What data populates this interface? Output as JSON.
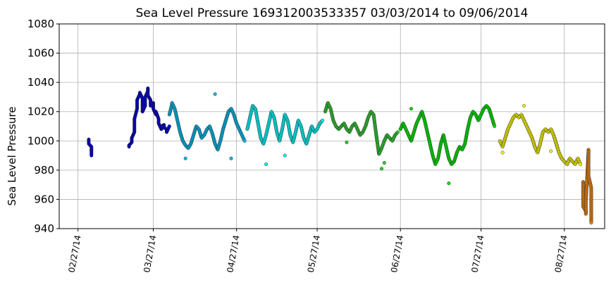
{
  "chart_data": {
    "type": "scatter",
    "title": "Sea Level Pressure 169312003533357  03/03/2014 to 09/06/2014",
    "ylabel": "Sea Level Pressure",
    "xlabel": "",
    "xlim": [
      "2014-02-20",
      "2014-09-11"
    ],
    "ylim": [
      940,
      1080
    ],
    "y_ticks": [
      940,
      960,
      980,
      1000,
      1020,
      1040,
      1060,
      1080
    ],
    "x_ticks": [
      {
        "date": "2014-02-27",
        "label": "02/27/14"
      },
      {
        "date": "2014-03-27",
        "label": "03/27/14"
      },
      {
        "date": "2014-04-27",
        "label": "04/27/14"
      },
      {
        "date": "2014-05-27",
        "label": "05/27/14"
      },
      {
        "date": "2014-06-27",
        "label": "06/27/14"
      },
      {
        "date": "2014-07-27",
        "label": "07/27/14"
      },
      {
        "date": "2014-08-27",
        "label": "08/27/14"
      }
    ],
    "grid": true,
    "color_gradient": [
      "#0000cc",
      "#00b4e6",
      "#00f0f0",
      "#30c030",
      "#00e000",
      "#f0f000",
      "#e88010"
    ],
    "series": [
      {
        "color": "#0000cc",
        "x": [
          "2014-03-03",
          "2014-03-03",
          "2014-03-04",
          "2014-03-04",
          "2014-03-04",
          "2014-03-04"
        ],
        "y": [
          1001,
          998,
          996,
          994,
          993,
          990
        ]
      },
      {
        "color": "#0000cc",
        "x": [
          "2014-03-18",
          "2014-03-18",
          "2014-03-19",
          "2014-03-19",
          "2014-03-20",
          "2014-03-20",
          "2014-03-20",
          "2014-03-21",
          "2014-03-21",
          "2014-03-22",
          "2014-03-22",
          "2014-03-23",
          "2014-03-23",
          "2014-03-23",
          "2014-03-24",
          "2014-03-24",
          "2014-03-25",
          "2014-03-25",
          "2014-03-25",
          "2014-03-26",
          "2014-03-26",
          "2014-03-27",
          "2014-03-27",
          "2014-03-28",
          "2014-03-28",
          "2014-03-29",
          "2014-03-29",
          "2014-03-30",
          "2014-03-30",
          "2014-03-31",
          "2014-03-31",
          "2014-04-01",
          "2014-04-01",
          "2014-04-02"
        ],
        "y": [
          996,
          997,
          999,
          1002,
          1006,
          1010,
          1015,
          1022,
          1028,
          1032,
          1033,
          1029,
          1025,
          1020,
          1024,
          1030,
          1034,
          1036,
          1031,
          1028,
          1024,
          1026,
          1022,
          1018,
          1020,
          1015,
          1012,
          1008,
          1010,
          1011,
          1009,
          1008,
          1006,
          1010
        ]
      },
      {
        "color": "#00b4e6",
        "x": [
          "2014-04-02",
          "2014-04-03",
          "2014-04-03",
          "2014-04-04",
          "2014-04-05",
          "2014-04-06",
          "2014-04-07",
          "2014-04-08",
          "2014-04-09",
          "2014-04-10",
          "2014-04-11",
          "2014-04-12",
          "2014-04-13",
          "2014-04-14",
          "2014-04-15",
          "2014-04-16",
          "2014-04-17",
          "2014-04-18",
          "2014-04-19",
          "2014-04-20",
          "2014-04-21",
          "2014-04-22",
          "2014-04-23",
          "2014-04-24",
          "2014-04-25",
          "2014-04-26",
          "2014-04-27",
          "2014-04-28",
          "2014-04-29",
          "2014-04-30"
        ],
        "y": [
          1018,
          1025,
          1026,
          1022,
          1014,
          1006,
          1000,
          997,
          995,
          998,
          1004,
          1010,
          1008,
          1002,
          1004,
          1008,
          1010,
          1005,
          998,
          994,
          1000,
          1008,
          1014,
          1020,
          1022,
          1018,
          1012,
          1008,
          1004,
          1000
        ]
      },
      {
        "color": "#00f0f0",
        "x": [
          "2014-05-01",
          "2014-05-02",
          "2014-05-03",
          "2014-05-04",
          "2014-05-05",
          "2014-05-06",
          "2014-05-07",
          "2014-05-08",
          "2014-05-09",
          "2014-05-10",
          "2014-05-11",
          "2014-05-12",
          "2014-05-13",
          "2014-05-14",
          "2014-05-15",
          "2014-05-16",
          "2014-05-17",
          "2014-05-18",
          "2014-05-19",
          "2014-05-20",
          "2014-05-21",
          "2014-05-22",
          "2014-05-23",
          "2014-05-24",
          "2014-05-25",
          "2014-05-26",
          "2014-05-27",
          "2014-05-28",
          "2014-05-29"
        ],
        "y": [
          1008,
          1016,
          1024,
          1022,
          1012,
          1002,
          998,
          1004,
          1012,
          1020,
          1016,
          1006,
          1000,
          1008,
          1018,
          1014,
          1004,
          999,
          1006,
          1014,
          1010,
          1002,
          998,
          1004,
          1010,
          1006,
          1008,
          1012,
          1014
        ]
      },
      {
        "color": "#30c030",
        "x": [
          "2014-05-30",
          "2014-05-31",
          "2014-06-01",
          "2014-06-02",
          "2014-06-03",
          "2014-06-04",
          "2014-06-05",
          "2014-06-06",
          "2014-06-07",
          "2014-06-08",
          "2014-06-09",
          "2014-06-10",
          "2014-06-11",
          "2014-06-12",
          "2014-06-13",
          "2014-06-14",
          "2014-06-15",
          "2014-06-16",
          "2014-06-17",
          "2014-06-18",
          "2014-06-19",
          "2014-06-20",
          "2014-06-21",
          "2014-06-22",
          "2014-06-23",
          "2014-06-24",
          "2014-06-25",
          "2014-06-26"
        ],
        "y": [
          1020,
          1026,
          1022,
          1014,
          1010,
          1008,
          1010,
          1012,
          1008,
          1006,
          1010,
          1012,
          1008,
          1004,
          1006,
          1010,
          1016,
          1020,
          1018,
          1004,
          991,
          995,
          1000,
          1004,
          1002,
          1000,
          1004,
          1006
        ]
      },
      {
        "color": "#00e000",
        "x": [
          "2014-06-27",
          "2014-06-28",
          "2014-06-29",
          "2014-06-30",
          "2014-07-01",
          "2014-07-02",
          "2014-07-03",
          "2014-07-04",
          "2014-07-05",
          "2014-07-06",
          "2014-07-07",
          "2014-07-08",
          "2014-07-09",
          "2014-07-10",
          "2014-07-11",
          "2014-07-12",
          "2014-07-13",
          "2014-07-14",
          "2014-07-15",
          "2014-07-16",
          "2014-07-17",
          "2014-07-18",
          "2014-07-19",
          "2014-07-20",
          "2014-07-21",
          "2014-07-22",
          "2014-07-23",
          "2014-07-24",
          "2014-07-25",
          "2014-07-26",
          "2014-07-27",
          "2014-07-28",
          "2014-07-29",
          "2014-07-30",
          "2014-07-31",
          "2014-08-01"
        ],
        "y": [
          1008,
          1012,
          1008,
          1004,
          1000,
          1006,
          1012,
          1016,
          1020,
          1014,
          1006,
          998,
          990,
          984,
          988,
          998,
          1004,
          996,
          988,
          984,
          986,
          992,
          996,
          994,
          998,
          1008,
          1016,
          1020,
          1018,
          1014,
          1018,
          1022,
          1024,
          1022,
          1016,
          1010
        ]
      },
      {
        "color": "#f0f000",
        "x": [
          "2014-08-03",
          "2014-08-04",
          "2014-08-05",
          "2014-08-06",
          "2014-08-07",
          "2014-08-08",
          "2014-08-09",
          "2014-08-10",
          "2014-08-11",
          "2014-08-12",
          "2014-08-13",
          "2014-08-14",
          "2014-08-15",
          "2014-08-16",
          "2014-08-17",
          "2014-08-18",
          "2014-08-19",
          "2014-08-20",
          "2014-08-21",
          "2014-08-22",
          "2014-08-23",
          "2014-08-24",
          "2014-08-25",
          "2014-08-26",
          "2014-08-27",
          "2014-08-28",
          "2014-08-29",
          "2014-08-30",
          "2014-08-31",
          "2014-09-01",
          "2014-09-02"
        ],
        "y": [
          1000,
          996,
          1002,
          1008,
          1012,
          1016,
          1018,
          1016,
          1018,
          1014,
          1010,
          1006,
          1002,
          996,
          992,
          998,
          1006,
          1008,
          1006,
          1008,
          1004,
          998,
          992,
          988,
          986,
          984,
          988,
          986,
          984,
          988,
          984
        ]
      },
      {
        "color": "#e88010",
        "x": [
          "2014-09-03",
          "2014-09-03",
          "2014-09-03",
          "2014-09-04",
          "2014-09-04",
          "2014-09-04",
          "2014-09-05",
          "2014-09-05",
          "2014-09-05",
          "2014-09-06",
          "2014-09-06",
          "2014-09-06",
          "2014-09-06",
          "2014-09-06"
        ],
        "y": [
          972,
          968,
          955,
          952,
          950,
          958,
          994,
          990,
          976,
          968,
          962,
          955,
          948,
          944
        ]
      }
    ],
    "outliers": [
      {
        "x": "2014-04-08",
        "y": 988
      },
      {
        "x": "2014-04-19",
        "y": 1032
      },
      {
        "x": "2014-04-25",
        "y": 988
      },
      {
        "x": "2014-05-08",
        "y": 984
      },
      {
        "x": "2014-05-15",
        "y": 990
      },
      {
        "x": "2014-06-07",
        "y": 999
      },
      {
        "x": "2014-06-20",
        "y": 981
      },
      {
        "x": "2014-06-21",
        "y": 985
      },
      {
        "x": "2014-07-01",
        "y": 1022
      },
      {
        "x": "2014-07-15",
        "y": 971
      },
      {
        "x": "2014-08-04",
        "y": 992
      },
      {
        "x": "2014-08-12",
        "y": 1024
      },
      {
        "x": "2014-08-22",
        "y": 993
      }
    ]
  }
}
